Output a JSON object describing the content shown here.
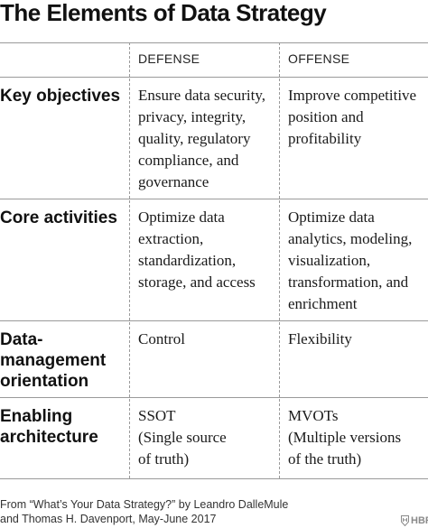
{
  "title": "The Elements of Data Strategy",
  "columns": {
    "defense": "DEFENSE",
    "offense": "OFFENSE"
  },
  "rows": [
    {
      "label": "Key objectives",
      "defense": [
        "Ensure data security,",
        "privacy, integrity,",
        "quality, regulatory",
        "compliance, and",
        "governance"
      ],
      "offense": [
        "Improve competitive",
        "position and",
        "profitability"
      ]
    },
    {
      "label": "Core activities",
      "defense": [
        "Optimize data",
        "extraction,",
        "standardization,",
        "storage, and access"
      ],
      "offense": [
        "Optimize data",
        "analytics, modeling,",
        "visualization,",
        "transformation, and",
        "enrichment"
      ]
    },
    {
      "label_lines": [
        "Data-",
        "management",
        "orientation"
      ],
      "defense": [
        "Control"
      ],
      "offense": [
        "Flexibility"
      ]
    },
    {
      "label_lines": [
        "Enabling",
        "architecture"
      ],
      "defense": [
        "SSOT",
        "(Single source",
        "of truth)"
      ],
      "offense": [
        "MVOTs",
        "(Multiple versions",
        "of the truth)"
      ]
    }
  ],
  "footer": {
    "line1": "From “What’s Your Data Strategy?” by Leandro DalleMule",
    "line2": "and Thomas H. Davenport, May-June 2017"
  },
  "logo": {
    "text": "HBR",
    "icon": "hbr-shield-icon"
  }
}
